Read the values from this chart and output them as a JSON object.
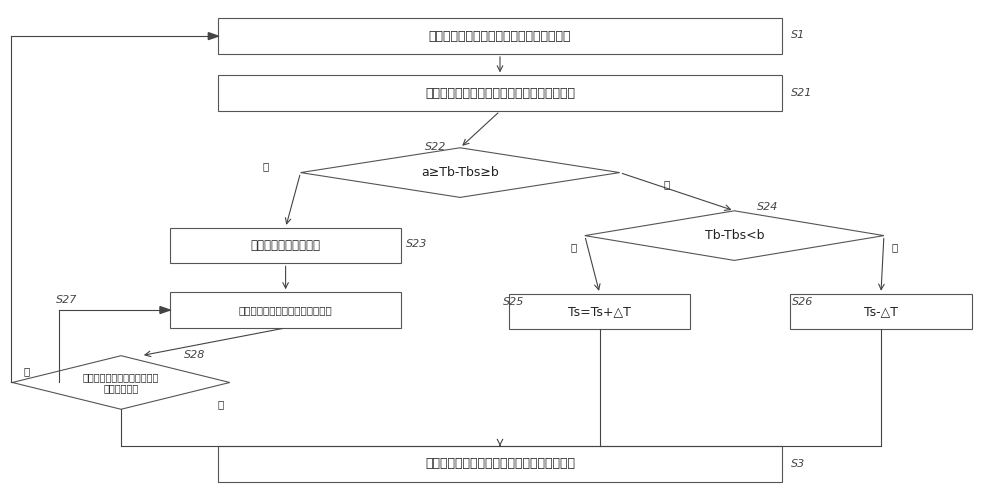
{
  "bg": "#ffffff",
  "ec": "#555555",
  "fc": "#ffffff",
  "ac": "#444444",
  "tc": "#222222",
  "lc": "#444444",
  "fs": 9,
  "fs_lbl": 8,
  "fs_yn": 7.5,
  "S1_text": "获取人体体表温度和空调器的设定目标温度",
  "S21_text": "计算人体体表温度与标准体表温度阈值的差值",
  "S22_text": "a≥Tb-Tbs≥b",
  "S23_text": "保持设定目标温度不变",
  "S27_text": "记录设定目标温度的保持累计时间",
  "S28_text": "判断保持累计时间是否大于或\n等于时间阈值",
  "S24_text": "Tb-Tbs<b",
  "S25_text": "Ts=Ts+△T",
  "S26_text": "Ts-△T",
  "S3_text": "控制空调器根据调节之后的设定目标温度运行"
}
